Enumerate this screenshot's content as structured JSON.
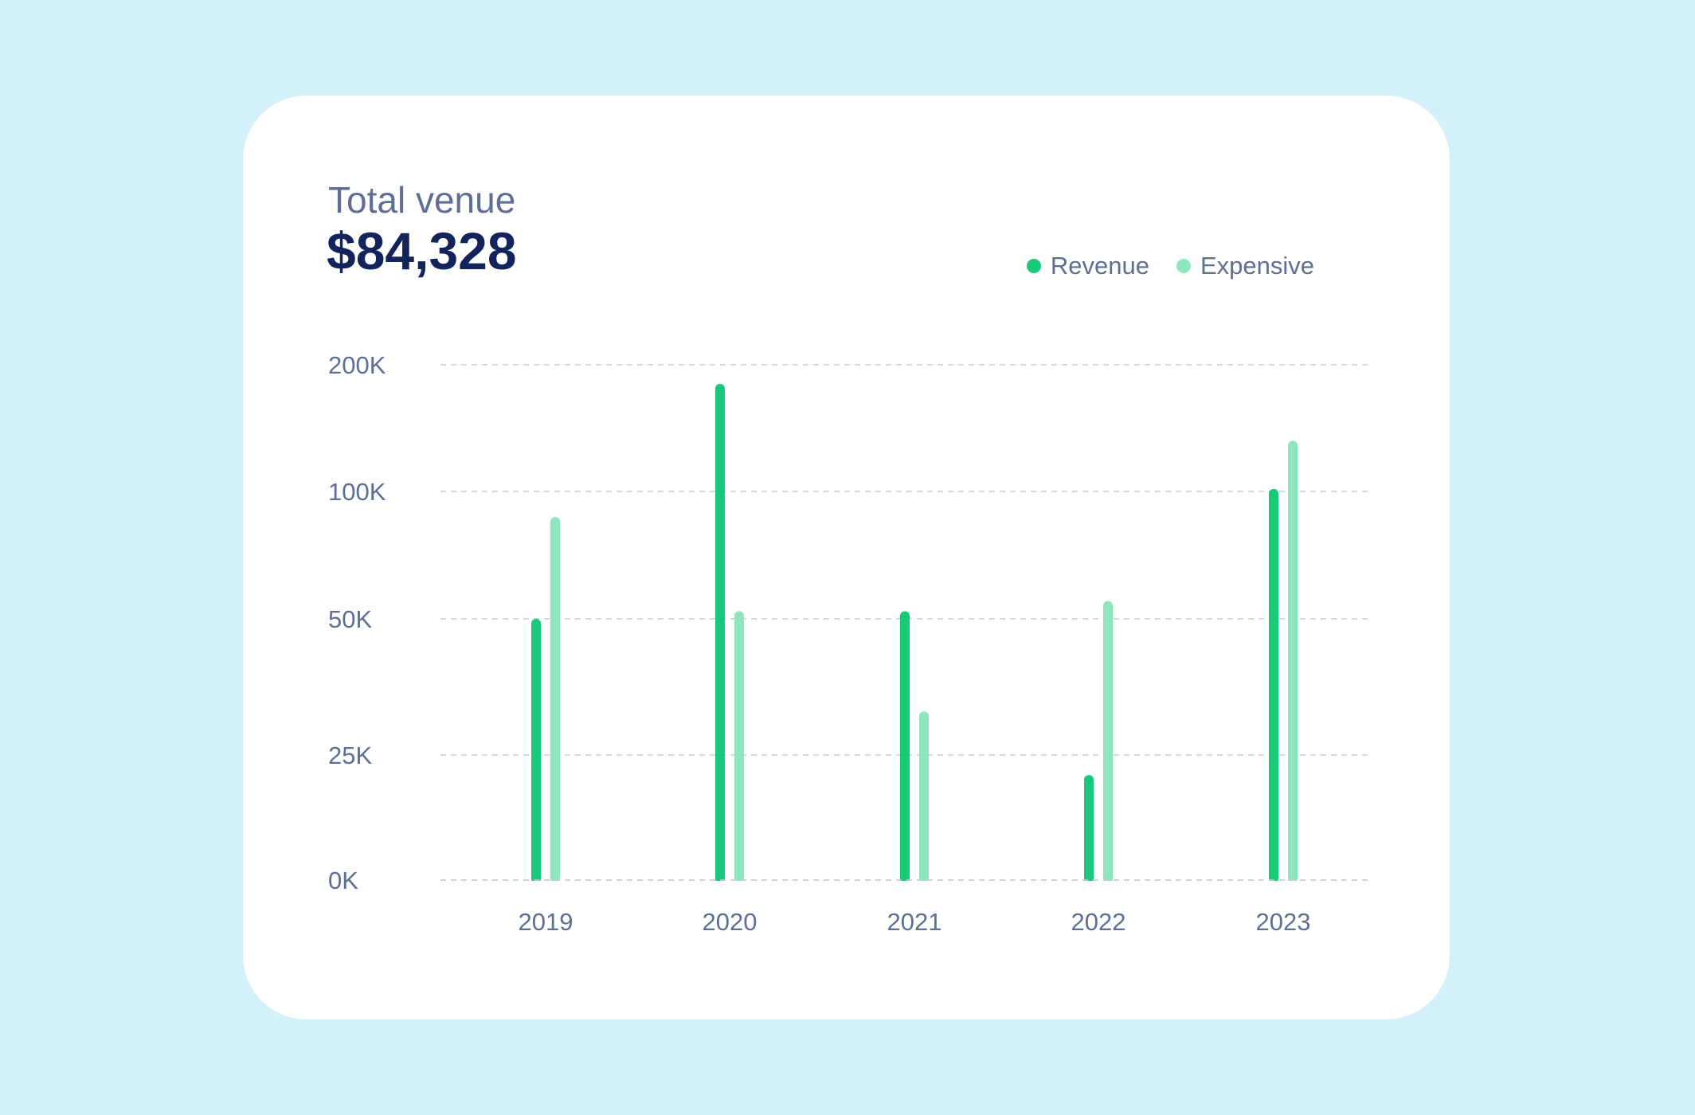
{
  "header": {
    "subtitle": "Total venue",
    "total": "$84,328"
  },
  "colors": {
    "background": "#d3f0fb",
    "card": "#ffffff",
    "revenue": "#17c978",
    "expensive": "#8de6bd",
    "text_muted": "#5f6f93",
    "text_strong": "#13235b",
    "grid": "#c8ccd8"
  },
  "chart_data": {
    "type": "bar",
    "title": "",
    "xlabel": "",
    "ylabel": "",
    "categories": [
      "2019",
      "2020",
      "2021",
      "2022",
      "2023"
    ],
    "y_ticks": [
      {
        "label": "0K",
        "value": 0
      },
      {
        "label": "25K",
        "value": 25000
      },
      {
        "label": "50K",
        "value": 50000
      },
      {
        "label": "100K",
        "value": 100000
      },
      {
        "label": "200K",
        "value": 200000
      }
    ],
    "series": [
      {
        "name": "Revenue",
        "color": "#17c978",
        "values": [
          50000,
          185000,
          53000,
          21000,
          102000
        ]
      },
      {
        "name": "Expensive",
        "color": "#8de6bd",
        "values": [
          90000,
          53000,
          33000,
          57000,
          140000
        ]
      }
    ],
    "legend_position": "top-right",
    "grid": true,
    "grid_style": "dashed"
  }
}
